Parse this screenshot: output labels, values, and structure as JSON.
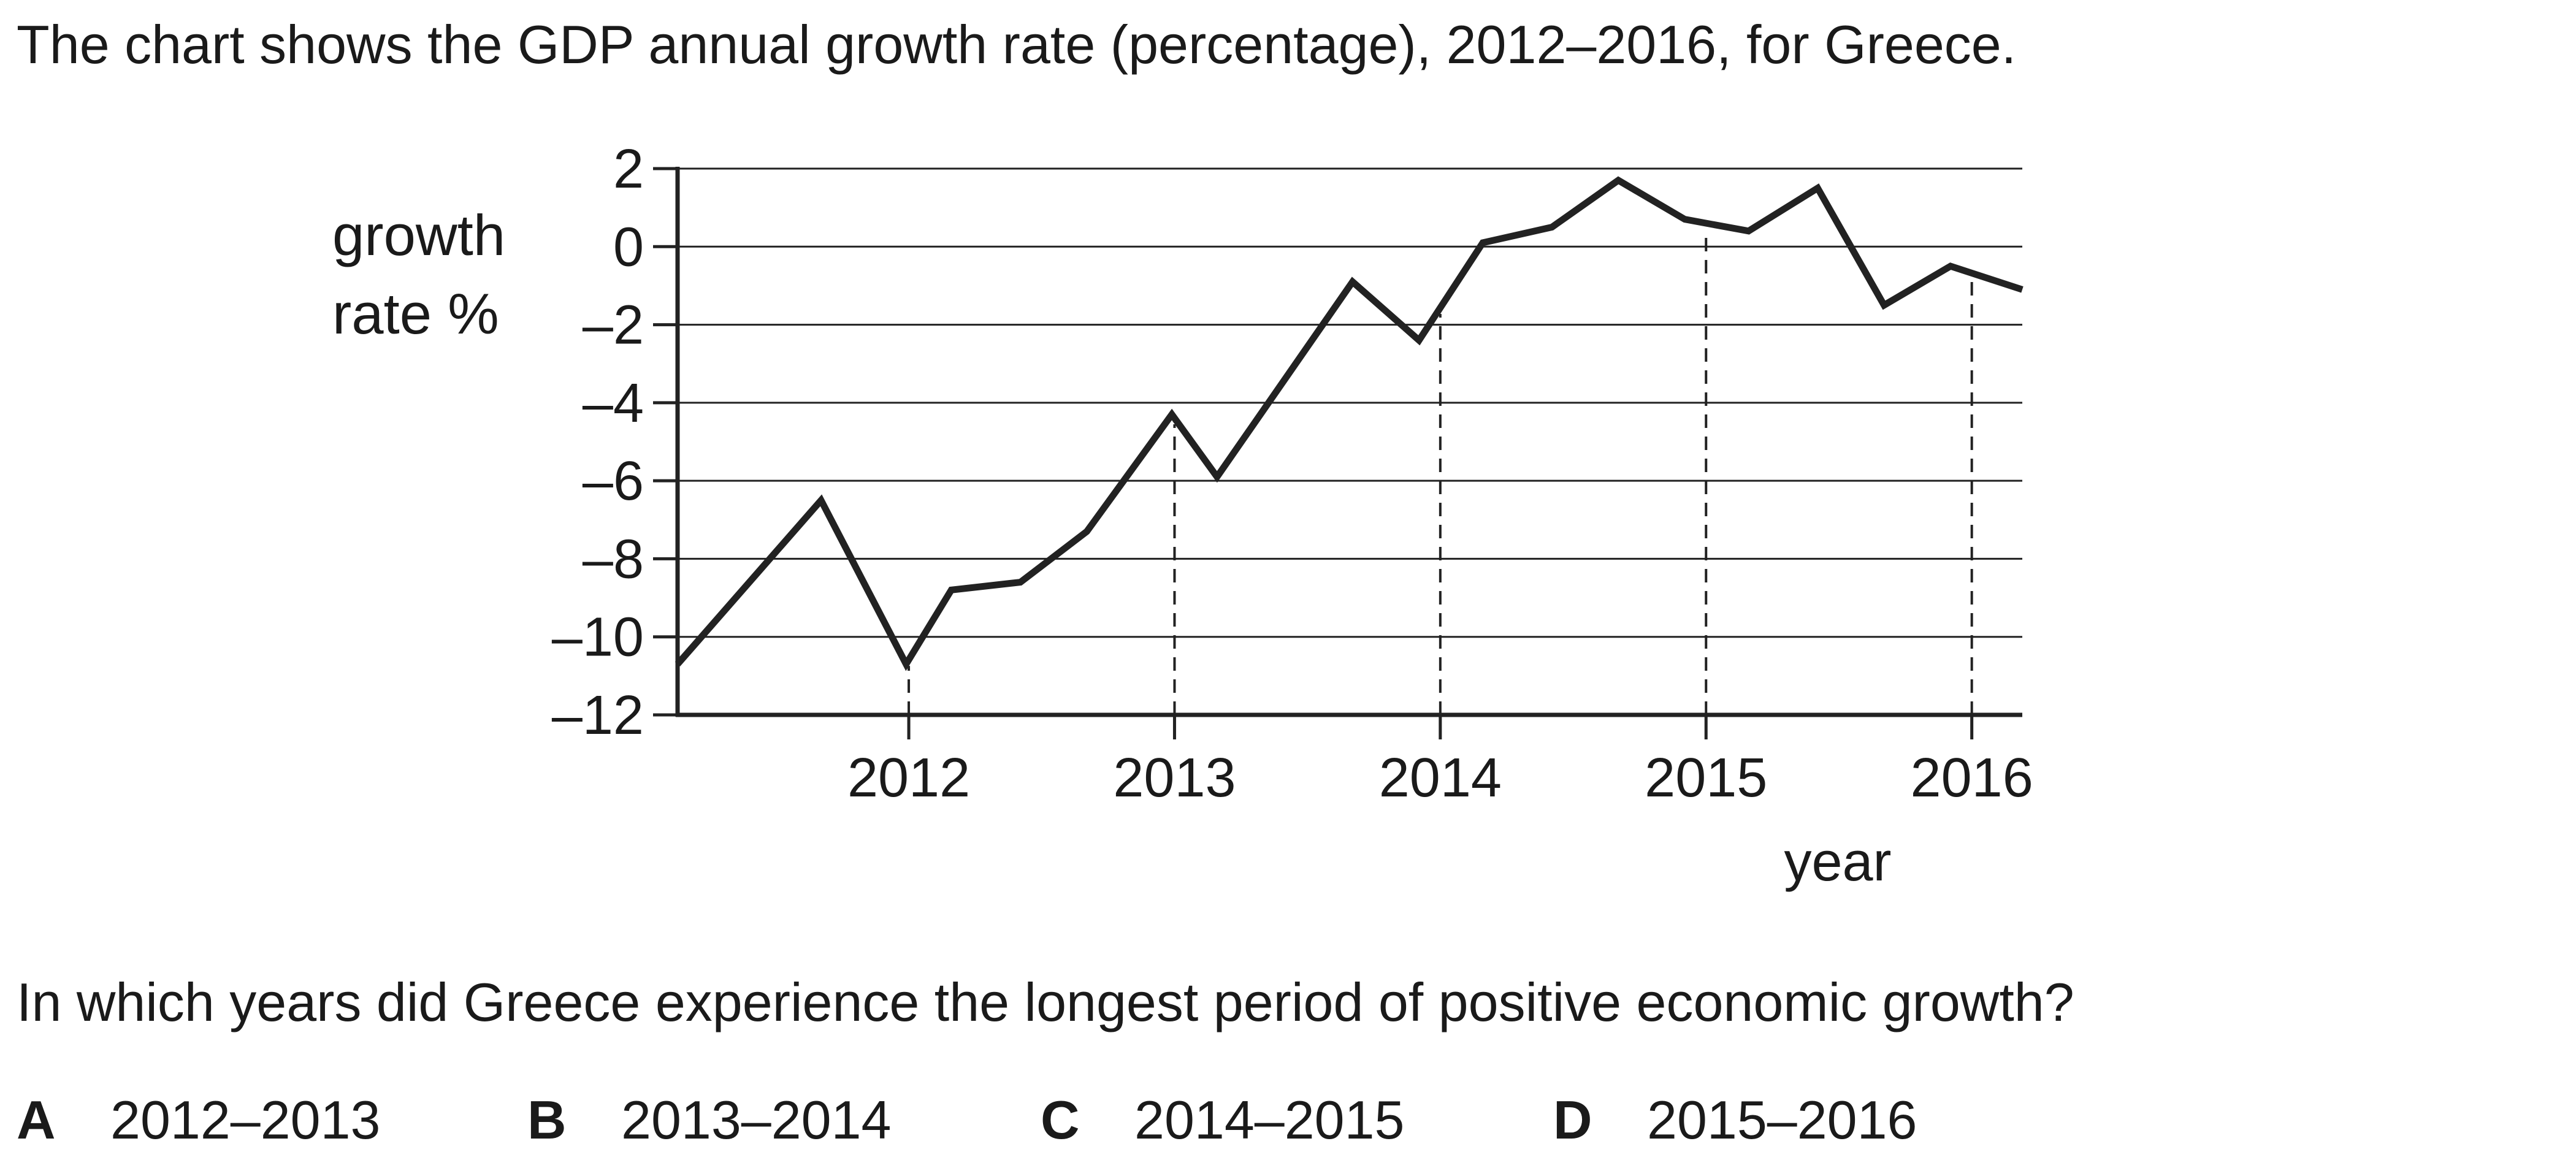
{
  "intro_text": "The chart shows the GDP annual growth rate (percentage), 2012–2016, for Greece.",
  "chart_data": {
    "type": "line",
    "ylabel_lines": [
      "growth",
      "rate %"
    ],
    "xlabel": "year",
    "ylim": [
      -12,
      2
    ],
    "yticks": [
      2,
      0,
      -2,
      -4,
      -6,
      -8,
      -10,
      -12
    ],
    "ytick_labels": [
      "2",
      "0",
      "–2",
      "–4",
      "–6",
      "–8",
      "–10",
      "–12"
    ],
    "xlim": [
      2011.13,
      2016.19
    ],
    "xticks": [
      2012,
      2013,
      2014,
      2015,
      2016
    ],
    "xtick_labels": [
      "2012",
      "2013",
      "2014",
      "2015",
      "2016"
    ],
    "grid": "horizontal",
    "dashed_guides_at": [
      2012,
      2013,
      2014,
      2015,
      2016
    ],
    "line_color": "#222222",
    "series": [
      {
        "x": [
          2011.13,
          2011.67,
          2011.99,
          2012.16,
          2012.42,
          2012.67,
          2012.99,
          2013.16,
          2013.67,
          2013.92,
          2014.16,
          2014.42,
          2014.67,
          2014.92,
          2015.16,
          2015.42,
          2015.67,
          2015.92,
          2016.19
        ],
        "y": [
          -10.7,
          -6.5,
          -10.7,
          -8.8,
          -8.6,
          -7.3,
          -4.3,
          -5.9,
          -0.9,
          -2.4,
          0.1,
          0.5,
          1.7,
          0.7,
          0.4,
          1.5,
          -1.5,
          -0.5,
          -1.1
        ]
      }
    ]
  },
  "question": "In which years did Greece experience the longest period of positive economic growth?",
  "options": [
    {
      "letter": "A",
      "text": "2012–2013"
    },
    {
      "letter": "B",
      "text": "2013–2014"
    },
    {
      "letter": "C",
      "text": "2014–2015"
    },
    {
      "letter": "D",
      "text": "2015–2016"
    }
  ]
}
